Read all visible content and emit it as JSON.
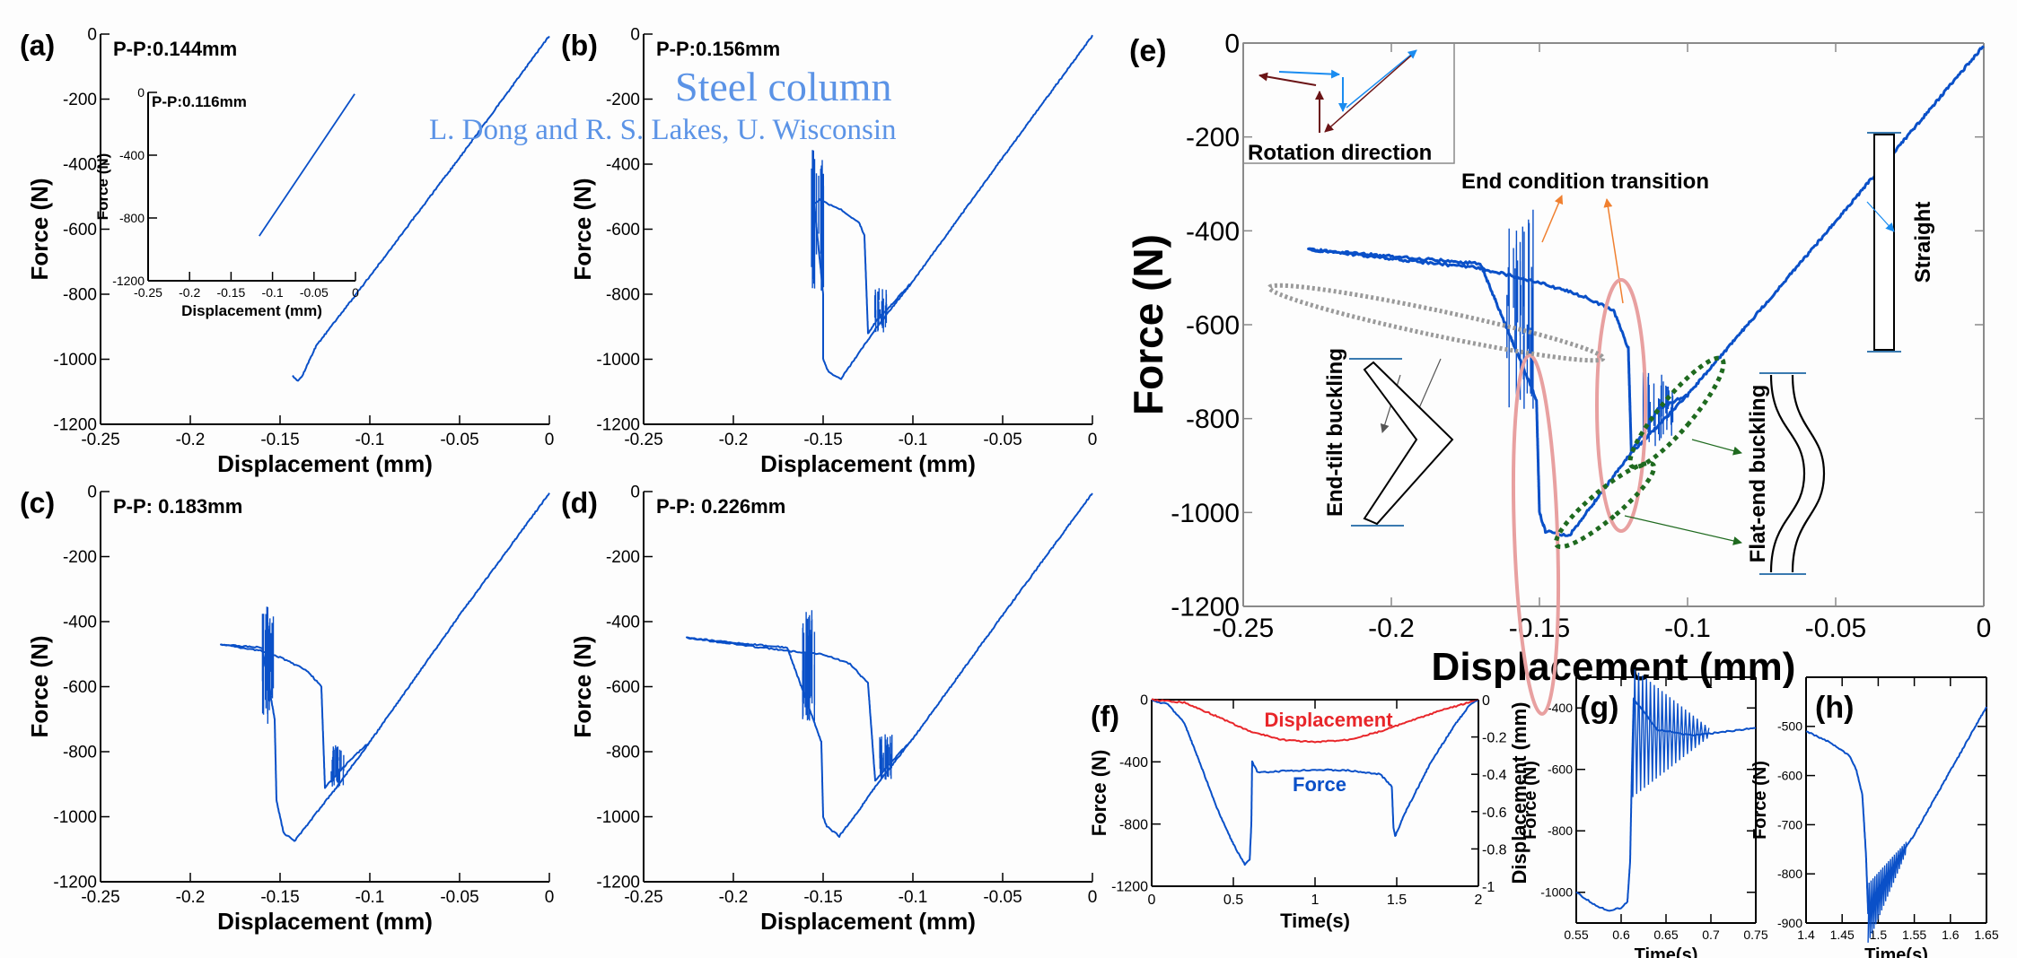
{
  "watermark": {
    "title": "Steel column",
    "credit": "L. Dong and R. S. Lakes, U. Wisconsin"
  },
  "colors": {
    "force": "#0a50c8",
    "displacement": "#e8262a",
    "rotation_blue": "#1a8cf0",
    "rotation_red": "#6b1416",
    "ellipse_pink": "#e8a0a0",
    "orange_arrow": "#f08030",
    "green": "#1f6a1f",
    "gray": "#888888"
  },
  "chart_data": [
    {
      "id": "a",
      "panel_label": "(a)",
      "type": "line",
      "annotation": "P-P:0.144mm",
      "xlabel": "Displacement (mm)",
      "ylabel": "Force (N)",
      "xlim": [
        -0.25,
        0
      ],
      "ylim": [
        -1200,
        0
      ],
      "xticks": [
        "-0.25",
        "-0.2",
        "-0.15",
        "-0.1",
        "-0.05",
        "0"
      ],
      "yticks": [
        "0",
        "-200",
        "-400",
        "-600",
        "-800",
        "-1000",
        "-1200"
      ],
      "series": [
        {
          "name": "Force",
          "points": [
            [
              0,
              -5
            ],
            [
              -0.05,
              -380
            ],
            [
              -0.1,
              -745
            ],
            [
              -0.13,
              -960
            ],
            [
              -0.138,
              -1055
            ],
            [
              -0.14,
              -1068
            ],
            [
              -0.143,
              -1050
            ]
          ]
        }
      ],
      "inset": {
        "annotation": "P-P:0.116mm",
        "xlabel": "Displacement (mm)",
        "ylabel": "Force (N)",
        "xlim": [
          -0.25,
          0
        ],
        "ylim": [
          -1200,
          0
        ],
        "xticks": [
          "-0.25",
          "-0.2",
          "-0.15",
          "-0.1",
          "-0.05",
          "0"
        ],
        "yticks": [
          "0",
          "-400",
          "-800",
          "-1200"
        ],
        "series": [
          {
            "name": "Force",
            "points": [
              [
                -0.001,
                -10
              ],
              [
                -0.116,
                -915
              ]
            ]
          }
        ]
      }
    },
    {
      "id": "b",
      "panel_label": "(b)",
      "type": "line",
      "annotation": "P-P:0.156mm",
      "xlabel": "Displacement (mm)",
      "ylabel": "Force (N)",
      "xlim": [
        -0.25,
        0
      ],
      "ylim": [
        -1200,
        0
      ],
      "xticks": [
        "-0.25",
        "-0.2",
        "-0.15",
        "-0.1",
        "-0.05",
        "0"
      ],
      "yticks": [
        "0",
        "-200",
        "-400",
        "-600",
        "-800",
        "-1000",
        "-1200"
      ],
      "series": [
        {
          "name": "Force",
          "points": [
            [
              0,
              -5
            ],
            [
              -0.05,
              -380
            ],
            [
              -0.1,
              -760
            ],
            [
              -0.12,
              -900
            ],
            [
              -0.13,
              -980
            ],
            [
              -0.14,
              -1060
            ],
            [
              -0.147,
              -1040
            ],
            [
              -0.15,
              -1000
            ],
            [
              -0.15,
              -800
            ],
            [
              -0.155,
              -520
            ],
            [
              -0.152,
              -510
            ],
            [
              -0.14,
              -540
            ],
            [
              -0.13,
              -580
            ],
            [
              -0.127,
              -620
            ],
            [
              -0.125,
              -920
            ],
            [
              -0.12,
              -880
            ],
            [
              -0.11,
              -820
            ],
            [
              -0.1,
              -760
            ]
          ]
        }
      ],
      "oscillations": [
        {
          "x": -0.153,
          "from": -350,
          "to": -800
        },
        {
          "x": -0.118,
          "from": -780,
          "to": -920
        }
      ]
    },
    {
      "id": "c",
      "panel_label": "(c)",
      "type": "line",
      "annotation": "P-P: 0.183mm",
      "xlabel": "Displacement (mm)",
      "ylabel": "Force (N)",
      "xlim": [
        -0.25,
        0
      ],
      "ylim": [
        -1200,
        0
      ],
      "xticks": [
        "-0.25",
        "-0.2",
        "-0.15",
        "-0.1",
        "-0.05",
        "0"
      ],
      "yticks": [
        "0",
        "-200",
        "-400",
        "-600",
        "-800",
        "-1000",
        "-1200"
      ],
      "series": [
        {
          "name": "Force",
          "points": [
            [
              0,
              -5
            ],
            [
              -0.05,
              -380
            ],
            [
              -0.1,
              -770
            ],
            [
              -0.12,
              -920
            ],
            [
              -0.13,
              -990
            ],
            [
              -0.142,
              -1075
            ],
            [
              -0.148,
              -1050
            ],
            [
              -0.152,
              -950
            ],
            [
              -0.153,
              -700
            ],
            [
              -0.16,
              -480
            ],
            [
              -0.183,
              -470
            ],
            [
              -0.16,
              -490
            ],
            [
              -0.15,
              -510
            ],
            [
              -0.135,
              -550
            ],
            [
              -0.127,
              -600
            ],
            [
              -0.125,
              -910
            ],
            [
              -0.12,
              -880
            ],
            [
              -0.11,
              -820
            ],
            [
              -0.1,
              -770
            ]
          ]
        }
      ],
      "oscillations": [
        {
          "x": -0.157,
          "from": -340,
          "to": -720
        },
        {
          "x": -0.118,
          "from": -780,
          "to": -910
        }
      ]
    },
    {
      "id": "d",
      "panel_label": "(d)",
      "type": "line",
      "annotation": "P-P: 0.226mm",
      "xlabel": "Displacement (mm)",
      "ylabel": "Force (N)",
      "xlim": [
        -0.25,
        0
      ],
      "ylim": [
        -1200,
        0
      ],
      "xticks": [
        "-0.25",
        "-0.2",
        "-0.15",
        "-0.1",
        "-0.05",
        "0"
      ],
      "yticks": [
        "0",
        "-200",
        "-400",
        "-600",
        "-800",
        "-1000",
        "-1200"
      ],
      "series": [
        {
          "name": "Force",
          "points": [
            [
              0,
              -5
            ],
            [
              -0.05,
              -380
            ],
            [
              -0.1,
              -760
            ],
            [
              -0.12,
              -900
            ],
            [
              -0.13,
              -980
            ],
            [
              -0.141,
              -1060
            ],
            [
              -0.148,
              -1030
            ],
            [
              -0.15,
              -1000
            ],
            [
              -0.151,
              -770
            ],
            [
              -0.17,
              -480
            ],
            [
              -0.226,
              -450
            ],
            [
              -0.17,
              -490
            ],
            [
              -0.15,
              -500
            ],
            [
              -0.135,
              -530
            ],
            [
              -0.125,
              -590
            ],
            [
              -0.121,
              -890
            ],
            [
              -0.115,
              -850
            ],
            [
              -0.105,
              -790
            ],
            [
              -0.1,
              -760
            ]
          ]
        }
      ],
      "oscillations": [
        {
          "x": -0.158,
          "from": -360,
          "to": -720
        },
        {
          "x": -0.115,
          "from": -740,
          "to": -890
        }
      ]
    },
    {
      "id": "e",
      "panel_label": "(e)",
      "type": "line",
      "xlabel": "Displacement (mm)",
      "ylabel": "Force (N)",
      "xlim": [
        -0.25,
        0
      ],
      "ylim": [
        -1200,
        0
      ],
      "xticks": [
        "-0.25",
        "-0.2",
        "-0.15",
        "-0.1",
        "-0.05",
        "0"
      ],
      "yticks": [
        "0",
        "-200",
        "-400",
        "-600",
        "-800",
        "-1000",
        "-1200"
      ],
      "series": [
        {
          "name": "Force",
          "points": [
            [
              0,
              -5
            ],
            [
              -0.05,
              -380
            ],
            [
              -0.1,
              -750
            ],
            [
              -0.12,
              -880
            ],
            [
              -0.14,
              -1050
            ],
            [
              -0.148,
              -1040
            ],
            [
              -0.15,
              -1000
            ],
            [
              -0.151,
              -760
            ],
            [
              -0.17,
              -470
            ],
            [
              -0.228,
              -440
            ],
            [
              -0.17,
              -480
            ],
            [
              -0.15,
              -510
            ],
            [
              -0.135,
              -540
            ],
            [
              -0.125,
              -570
            ],
            [
              -0.12,
              -650
            ],
            [
              -0.119,
              -870
            ],
            [
              -0.11,
              -780
            ],
            [
              -0.1,
              -750
            ]
          ]
        }
      ],
      "oscillations": [
        {
          "x": -0.157,
          "from": -350,
          "to": -780
        },
        {
          "x": -0.11,
          "from": -700,
          "to": -860
        }
      ],
      "annotations": {
        "rotation": "Rotation direction",
        "transition": "End condition transition",
        "straight": "Straight",
        "end_tilt": "End-tilt buckling",
        "flat_end": "Flat-end buckling"
      }
    },
    {
      "id": "f",
      "panel_label": "(f)",
      "type": "line",
      "xlabel": "Time(s)",
      "ylabel": "Force (N)",
      "ylabel_right": "Displacement (mm)",
      "xlim": [
        0,
        2
      ],
      "ylim": [
        -1200,
        0
      ],
      "ylim_right": [
        -1,
        0
      ],
      "xticks": [
        "0",
        "0.5",
        "1",
        "1.5",
        "2"
      ],
      "yticks": [
        "0",
        "-400",
        "-800",
        "-1200"
      ],
      "yticks_right": [
        "0",
        "-0.2",
        "-0.4",
        "-0.6",
        "-0.8",
        "-1"
      ],
      "series": [
        {
          "name": "Force",
          "label": "Force",
          "points": [
            [
              0,
              -5
            ],
            [
              0.1,
              -30
            ],
            [
              0.2,
              -150
            ],
            [
              0.3,
              -420
            ],
            [
              0.4,
              -700
            ],
            [
              0.5,
              -930
            ],
            [
              0.57,
              -1060
            ],
            [
              0.6,
              -1030
            ],
            [
              0.61,
              -800
            ],
            [
              0.615,
              -400
            ],
            [
              0.65,
              -470
            ],
            [
              0.8,
              -460
            ],
            [
              1.0,
              -450
            ],
            [
              1.2,
              -455
            ],
            [
              1.4,
              -480
            ],
            [
              1.47,
              -560
            ],
            [
              1.48,
              -820
            ],
            [
              1.49,
              -880
            ],
            [
              1.55,
              -730
            ],
            [
              1.7,
              -420
            ],
            [
              1.85,
              -170
            ],
            [
              1.95,
              -30
            ],
            [
              2.0,
              -5
            ]
          ]
        },
        {
          "name": "Displacement",
          "label": "Displacement",
          "axis": "right",
          "points": [
            [
              0,
              0
            ],
            [
              0.2,
              -0.015
            ],
            [
              0.4,
              -0.09
            ],
            [
              0.6,
              -0.17
            ],
            [
              0.8,
              -0.215
            ],
            [
              1.0,
              -0.228
            ],
            [
              1.2,
              -0.215
            ],
            [
              1.4,
              -0.17
            ],
            [
              1.6,
              -0.11
            ],
            [
              1.8,
              -0.05
            ],
            [
              2.0,
              0
            ]
          ]
        }
      ]
    },
    {
      "id": "g",
      "panel_label": "(g)",
      "type": "line",
      "xlabel": "Time(s)",
      "ylabel": "Force (N)",
      "xlim": [
        0.55,
        0.75
      ],
      "ylim": [
        -1100,
        -300
      ],
      "xticks": [
        "0.55",
        "0.6",
        "0.65",
        "0.7",
        "0.75"
      ],
      "yticks": [
        "-400",
        "-600",
        "-800",
        "-1000"
      ],
      "series": [
        {
          "name": "Force",
          "points": [
            [
              0.55,
              -1000
            ],
            [
              0.57,
              -1040
            ],
            [
              0.585,
              -1060
            ],
            [
              0.6,
              -1050
            ],
            [
              0.607,
              -1030
            ],
            [
              0.61,
              -900
            ],
            [
              0.612,
              -600
            ],
            [
              0.614,
              -370
            ],
            [
              0.64,
              -470
            ],
            [
              0.68,
              -490
            ],
            [
              0.75,
              -465
            ]
          ]
        }
      ],
      "oscillations": [
        {
          "x0": 0.613,
          "x1": 0.7,
          "amp0": 420,
          "amp1": 20,
          "center": -480
        }
      ]
    },
    {
      "id": "h",
      "panel_label": "(h)",
      "type": "line",
      "xlabel": "Time(s)",
      "ylabel": "Force (N)",
      "xlim": [
        1.4,
        1.65
      ],
      "ylim": [
        -900,
        -400
      ],
      "xticks": [
        "1.4",
        "1.45",
        "1.5",
        "1.55",
        "1.6",
        "1.65"
      ],
      "yticks": [
        "-500",
        "-600",
        "-700",
        "-800",
        "-900"
      ],
      "series": [
        {
          "name": "Force",
          "points": [
            [
              1.4,
              -510
            ],
            [
              1.43,
              -530
            ],
            [
              1.46,
              -560
            ],
            [
              1.47,
              -590
            ],
            [
              1.478,
              -640
            ],
            [
              1.483,
              -760
            ],
            [
              1.486,
              -880
            ],
            [
              1.5,
              -830
            ],
            [
              1.55,
              -720
            ],
            [
              1.6,
              -590
            ],
            [
              1.65,
              -460
            ]
          ]
        }
      ],
      "oscillations": [
        {
          "x0": 1.486,
          "x1": 1.54,
          "amp0": 120,
          "amp1": 20,
          "center": "trend"
        }
      ]
    }
  ]
}
